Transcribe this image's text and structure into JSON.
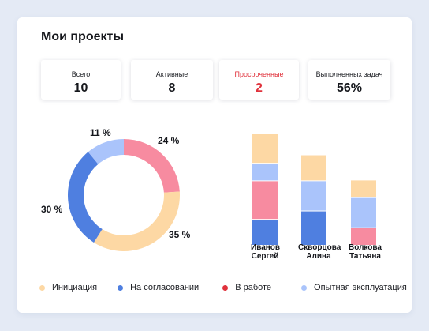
{
  "header": {
    "title": "Мои проекты"
  },
  "stats": [
    {
      "label": "Всего",
      "value": "10"
    },
    {
      "label": "Активные",
      "value": "8"
    },
    {
      "label": "Просроченные",
      "value": "2",
      "color": "#e0323c"
    },
    {
      "label": "Выполненных задач",
      "value": "56%"
    }
  ],
  "colors": {
    "initiation": "#fdd8a4",
    "approval": "#4f7fe0",
    "in_work": "#f78ba0",
    "pilot": "#aac4fb",
    "overdue": "#e0323c"
  },
  "legend": [
    {
      "label": "Инициация",
      "color": "#fdd8a4"
    },
    {
      "label": "На согласовании",
      "color": "#4f7fe0"
    },
    {
      "label": "В работе",
      "color": "#e0323c"
    },
    {
      "label": "Опытная эксплуатация",
      "color": "#aac4fb"
    }
  ],
  "chart_data": [
    {
      "type": "pie",
      "categories": [
        "В работе",
        "Инициация",
        "На согласовании",
        "Опытная эксплуатация"
      ],
      "values": [
        24,
        35,
        30,
        11
      ],
      "labels": [
        "24 %",
        "35 %",
        "30 %",
        "11 %"
      ],
      "colors": [
        "#f78ba0",
        "#fdd8a4",
        "#4f7fe0",
        "#aac4fb"
      ]
    },
    {
      "type": "bar",
      "stacked": true,
      "categories": [
        "Иванов Сергей",
        "Скворцова Алина",
        "Волкова Татьяна"
      ],
      "category_lines": [
        [
          "Иванов",
          "Сергей"
        ],
        [
          "Скворцова",
          "Алина"
        ],
        [
          "Волкова",
          "Татьяна"
        ]
      ],
      "series": [
        {
          "color": "#4f7fe0",
          "values": [
            3,
            4,
            0
          ]
        },
        {
          "color": "#f78ba0",
          "values": [
            4.5,
            0,
            2
          ]
        },
        {
          "color": "#aac4fb",
          "values": [
            2,
            3.5,
            3.5
          ]
        },
        {
          "color": "#fdd8a4",
          "values": [
            3.5,
            3,
            2
          ]
        }
      ],
      "ylim": [
        0,
        13
      ]
    }
  ]
}
